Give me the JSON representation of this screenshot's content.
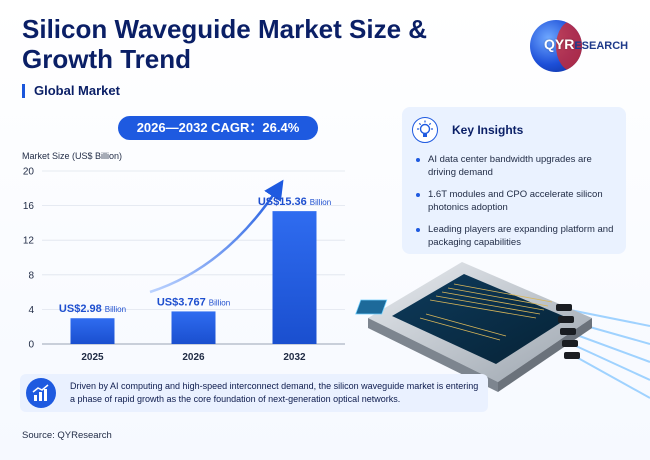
{
  "header": {
    "title": "Silicon Waveguide Market Size & Growth Trend",
    "subtitle": "Global Market",
    "logo_text": "QYRESEARCH"
  },
  "cagr_badge": "2026—2032 CAGR：26.4%",
  "insights": {
    "title": "Key Insights",
    "items": [
      "AI data center bandwidth upgrades are driving demand",
      "1.6T modules and CPO accelerate silicon photonics adoption",
      "Leading players are expanding platform and packaging capabilities"
    ]
  },
  "footer": {
    "summary": "Driven by AI computing and high-speed interconnect demand, the silicon waveguide market is entering a phase of rapid growth as the core foundation of next-generation optical networks.",
    "source": "Source: QYResearch"
  },
  "colors": {
    "bar": "#1e5ae0",
    "accent": "#1a56db",
    "title": "#0a1f66"
  },
  "chart_data": {
    "type": "bar",
    "categories": [
      "2025",
      "2026",
      "2032"
    ],
    "values": [
      2.98,
      3.767,
      15.36
    ],
    "value_labels": [
      {
        "main": "US$2.98",
        "unit": "Billion"
      },
      {
        "main": "US$3.767",
        "unit": "Billion"
      },
      {
        "main": "US$15.36",
        "unit": "Billion"
      }
    ],
    "ylabel": "Market Size (US$ Billion)",
    "ylim": [
      0,
      20
    ],
    "yticks": [
      "0",
      "4",
      "8",
      "12",
      "16",
      "20"
    ],
    "ytick_values": [
      0,
      4,
      8,
      12,
      16,
      20
    ],
    "grid": true,
    "trend_arrow": true
  }
}
